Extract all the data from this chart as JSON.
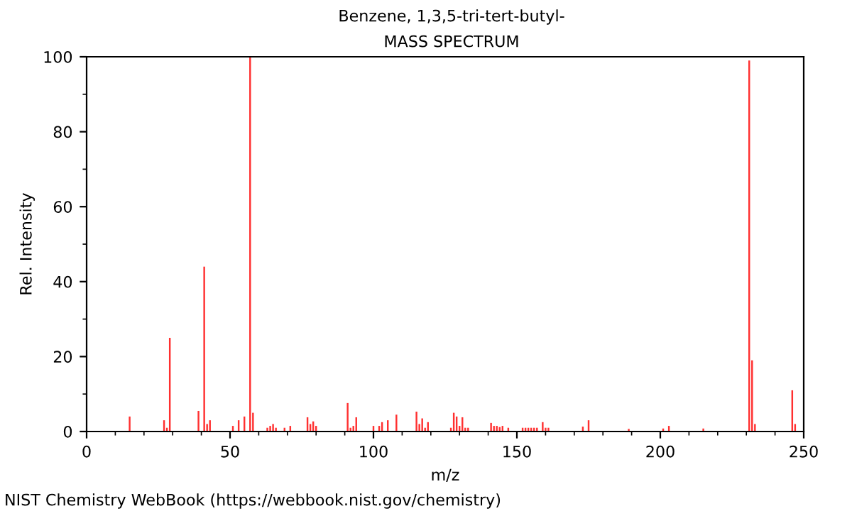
{
  "chart_data": {
    "type": "bar",
    "title": "Benzene, 1,3,5-tri-tert-butyl-",
    "subtitle": "MASS SPECTRUM",
    "xlabel": "m/z",
    "ylabel": "Rel. Intensity",
    "annotations": [
      "NIST Chemistry WebBook (https://webbook.nist.gov/chemistry)"
    ],
    "x": [
      15,
      27,
      28,
      29,
      39,
      41,
      42,
      43,
      51,
      53,
      55,
      57,
      58,
      63,
      64,
      65,
      66,
      69,
      71,
      77,
      78,
      79,
      80,
      91,
      92,
      93,
      94,
      100,
      102,
      103,
      105,
      108,
      115,
      116,
      117,
      118,
      119,
      127,
      128,
      129,
      130,
      131,
      132,
      133,
      141,
      142,
      143,
      144,
      145,
      147,
      152,
      153,
      154,
      155,
      156,
      157,
      159,
      160,
      161,
      173,
      175,
      189,
      201,
      203,
      215,
      231,
      232,
      233,
      246,
      247
    ],
    "values": [
      4,
      3,
      1,
      25,
      5.5,
      44,
      2,
      3,
      1.5,
      3,
      4,
      100,
      5,
      1,
      1.5,
      2,
      1,
      1,
      1.5,
      3.8,
      2,
      2.7,
      1.5,
      7.6,
      1,
      1.5,
      3.8,
      1.5,
      1.5,
      2.5,
      3,
      4.5,
      5.3,
      2,
      3.5,
      1,
      2.5,
      1,
      5,
      4,
      1.5,
      3.8,
      1,
      1,
      2.3,
      1.5,
      1.5,
      1.2,
      1.5,
      1,
      1,
      1,
      1,
      1,
      1,
      1,
      2.5,
      1,
      1,
      1.3,
      3,
      0.7,
      0.8,
      1.5,
      0.8,
      99,
      19,
      2,
      11,
      2
    ],
    "color": "#ff3030",
    "xlim": [
      0,
      250
    ],
    "xticks": [
      0,
      50,
      100,
      150,
      200,
      250
    ],
    "ylim": [
      0,
      100
    ],
    "yticks": [
      0,
      20,
      40,
      60,
      80,
      100
    ],
    "grid": false
  }
}
